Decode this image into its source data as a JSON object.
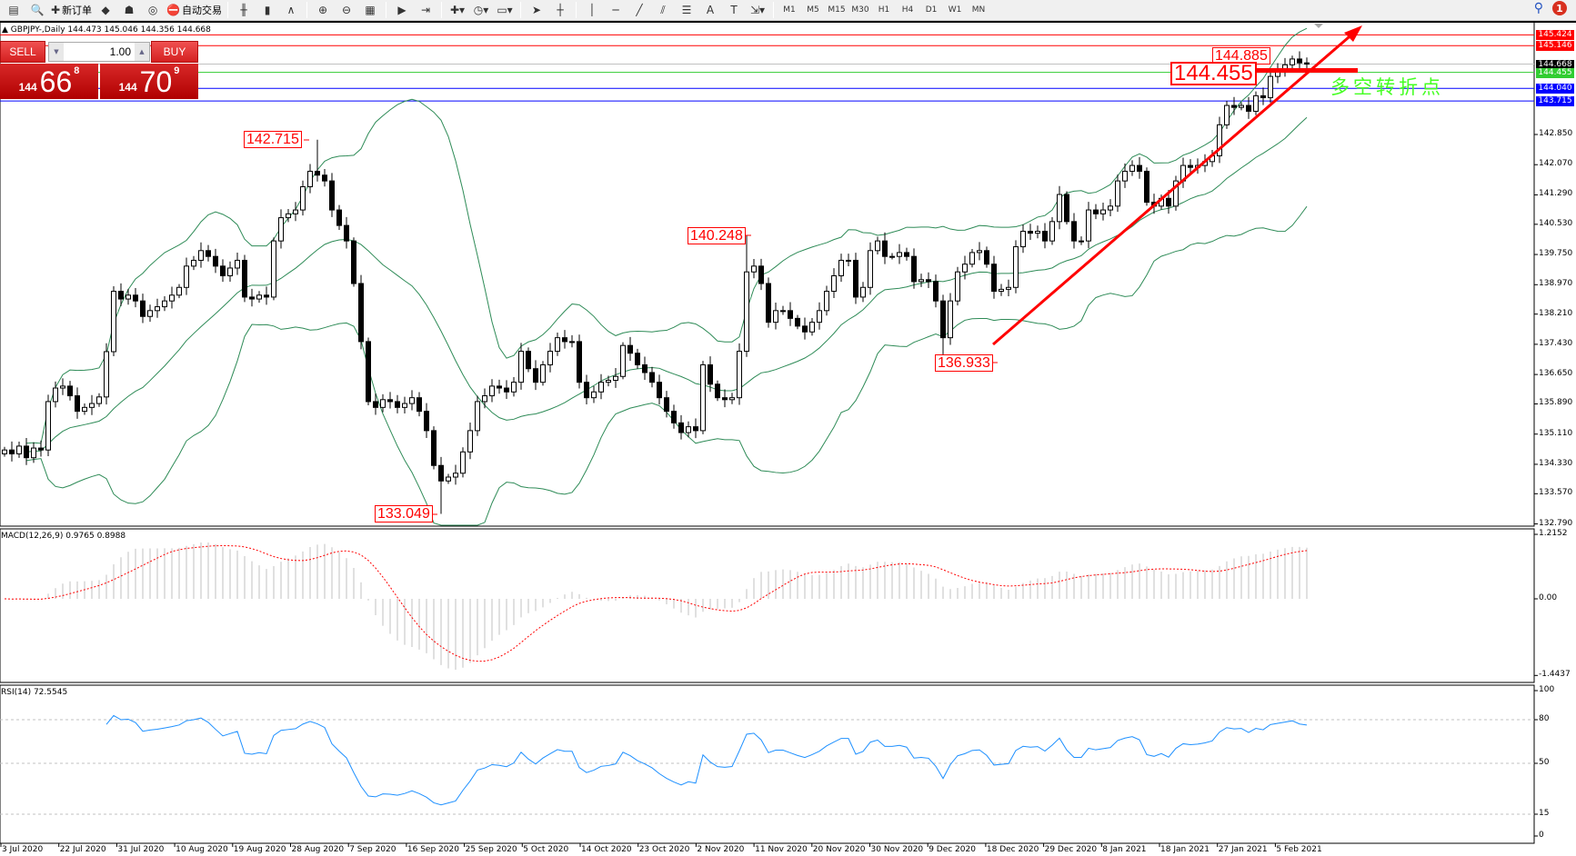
{
  "toolbar": {
    "items": [
      {
        "icon": "window-icon",
        "glyph": "▤"
      },
      {
        "icon": "print-preview-icon",
        "glyph": "🔍"
      },
      {
        "icon": "new-order-icon",
        "glyph": "✚",
        "label": "新订单"
      },
      {
        "icon": "market-watch-icon",
        "glyph": "◆"
      },
      {
        "icon": "navigator-icon",
        "glyph": "☗"
      },
      {
        "icon": "signals-icon",
        "glyph": "◎"
      },
      {
        "icon": "autotrading-icon",
        "glyph": "⛔",
        "label": "自动交易"
      },
      {
        "sep": true
      },
      {
        "icon": "bar-chart-icon",
        "glyph": "╫"
      },
      {
        "icon": "candlestick-icon",
        "glyph": "▮"
      },
      {
        "icon": "line-chart-icon",
        "glyph": "∧"
      },
      {
        "sep": true
      },
      {
        "icon": "zoom-in-icon",
        "glyph": "⊕"
      },
      {
        "icon": "zoom-out-icon",
        "glyph": "⊖"
      },
      {
        "icon": "tile-windows-icon",
        "glyph": "▦"
      },
      {
        "sep": true
      },
      {
        "icon": "auto-scroll-icon",
        "glyph": "▶"
      },
      {
        "icon": "chart-shift-icon",
        "glyph": "⇥"
      },
      {
        "sep": true
      },
      {
        "icon": "indicators-icon",
        "glyph": "✚▾"
      },
      {
        "icon": "periods-icon",
        "glyph": "◷▾"
      },
      {
        "icon": "templates-icon",
        "glyph": "▭▾"
      },
      {
        "sep": true
      },
      {
        "icon": "cursor-icon",
        "glyph": "➤"
      },
      {
        "icon": "crosshair-icon",
        "glyph": "┼"
      },
      {
        "sep": true
      },
      {
        "icon": "vertical-line-icon",
        "glyph": "│"
      },
      {
        "icon": "horizontal-line-icon",
        "glyph": "─"
      },
      {
        "icon": "trendline-icon",
        "glyph": "╱"
      },
      {
        "icon": "channel-icon",
        "glyph": "⫽"
      },
      {
        "icon": "fibonacci-icon",
        "glyph": "☰"
      },
      {
        "icon": "text-icon",
        "glyph": "A"
      },
      {
        "icon": "text-label-icon",
        "glyph": "T"
      },
      {
        "icon": "arrows-icon",
        "glyph": "⇲▾"
      },
      {
        "sep": true
      }
    ],
    "timeframes": [
      "M1",
      "M5",
      "M15",
      "M30",
      "H1",
      "H4",
      "D1",
      "W1",
      "MN"
    ],
    "notifications": "1"
  },
  "chart": {
    "title": "GBPJPY-,Daily  144.473 145.046 144.356 144.668",
    "one_click": {
      "sell_label": "SELL",
      "buy_label": "BUY",
      "lot": "1.00",
      "sell_price": {
        "big": "144",
        "main": "66",
        "pip": "8"
      },
      "buy_price": {
        "big": "144",
        "main": "70",
        "pip": "9"
      }
    },
    "annotations": {
      "a1": "142.715",
      "a2": "140.248",
      "a3": "136.933",
      "a4": "133.049",
      "a5": "144.885",
      "a6": "144.455",
      "note": "多空转折点"
    },
    "macd_label": "MACD(12,26,9) 0.9765 0.8988",
    "rsi_label": "RSI(14) 72.5545"
  },
  "chart_data": {
    "type": "candlestick",
    "symbol": "GBPJPY-",
    "timeframe": "Daily",
    "ylim": [
      132.79,
      145.6
    ],
    "price_ticks": [
      "142.850",
      "142.070",
      "141.290",
      "140.530",
      "139.750",
      "138.970",
      "138.210",
      "137.430",
      "136.650",
      "135.890",
      "135.110",
      "134.330",
      "133.570",
      "132.790"
    ],
    "hlines": [
      {
        "price": "145.424",
        "color": "#ff0000"
      },
      {
        "price": "145.146",
        "color": "#ff0000"
      },
      {
        "price": "144.668",
        "color": "#000000",
        "line": "#c0c0c0"
      },
      {
        "price": "144.455",
        "color": "#32cd32"
      },
      {
        "price": "144.040",
        "color": "#0000ff"
      },
      {
        "price": "143.715",
        "color": "#0000ff"
      }
    ],
    "x_labels": [
      "3 Jul 2020",
      "22 Jul 2020",
      "31 Jul 2020",
      "10 Aug 2020",
      "19 Aug 2020",
      "28 Aug 2020",
      "7 Sep 2020",
      "16 Sep 2020",
      "25 Sep 2020",
      "5 Oct 2020",
      "14 Oct 2020",
      "23 Oct 2020",
      "2 Nov 2020",
      "11 Nov 2020",
      "20 Nov 2020",
      "30 Nov 2020",
      "9 Dec 2020",
      "18 Dec 2020",
      "29 Dec 2020",
      "8 Jan 2021",
      "18 Jan 2021",
      "27 Jan 2021",
      "5 Feb 2021"
    ],
    "closes": [
      134.7,
      134.6,
      134.8,
      134.5,
      134.75,
      134.7,
      135.95,
      136.3,
      136.35,
      136.1,
      135.7,
      135.8,
      135.9,
      136.07,
      137.24,
      138.8,
      138.6,
      138.7,
      138.55,
      138.15,
      138.3,
      138.4,
      138.55,
      138.7,
      138.9,
      139.45,
      139.6,
      139.85,
      139.7,
      139.45,
      139.2,
      139.4,
      139.6,
      138.65,
      138.6,
      138.7,
      138.65,
      140.1,
      140.7,
      140.8,
      140.9,
      141.5,
      141.9,
      141.8,
      141.65,
      140.9,
      140.5,
      140.1,
      139.0,
      137.5,
      135.95,
      135.8,
      136.0,
      135.95,
      135.8,
      135.9,
      136.05,
      135.7,
      135.2,
      134.3,
      133.9,
      134.0,
      134.1,
      134.65,
      135.2,
      135.95,
      136.1,
      136.35,
      136.3,
      136.2,
      136.45,
      137.25,
      136.8,
      136.45,
      136.9,
      137.25,
      137.6,
      137.5,
      137.5,
      136.45,
      136.05,
      136.2,
      136.45,
      136.5,
      136.6,
      137.4,
      137.2,
      136.9,
      136.7,
      136.45,
      136.05,
      135.7,
      135.4,
      135.15,
      135.3,
      135.2,
      136.9,
      136.4,
      136.05,
      136.0,
      136.05,
      137.25,
      139.3,
      139.45,
      139.0,
      138.0,
      138.3,
      138.3,
      138.1,
      137.9,
      137.75,
      138.0,
      138.3,
      138.8,
      139.2,
      139.6,
      139.6,
      138.65,
      138.9,
      139.85,
      140.1,
      139.7,
      139.7,
      139.8,
      139.7,
      139.05,
      139.1,
      139.05,
      138.55,
      137.6,
      138.55,
      139.3,
      139.5,
      139.8,
      139.85,
      139.5,
      138.8,
      138.85,
      138.9,
      139.95,
      140.35,
      140.3,
      140.35,
      140.1,
      140.6,
      141.3,
      140.6,
      140.1,
      140.1,
      140.9,
      140.8,
      140.9,
      141.0,
      141.65,
      141.9,
      142.05,
      141.9,
      141.1,
      141.0,
      141.2,
      141.0,
      141.65,
      142.05,
      142.0,
      142.05,
      142.15,
      142.3,
      143.1,
      143.6,
      143.55,
      143.6,
      143.45,
      143.85,
      143.8,
      144.35,
      144.5,
      144.65,
      144.8,
      144.7,
      144.668
    ],
    "extremes": [
      {
        "price": 142.715,
        "type": "high"
      },
      {
        "price": 133.049,
        "type": "low"
      },
      {
        "price": 140.248,
        "type": "high"
      },
      {
        "price": 136.933,
        "type": "low"
      },
      {
        "price": 144.885,
        "type": "high"
      }
    ],
    "indicators": {
      "bollinger": {
        "period": 20,
        "deviation": 2,
        "color": "#2e8b57"
      },
      "macd": {
        "fast": 12,
        "slow": 26,
        "signal": 9,
        "main": 0.9765,
        "signal_value": 0.8988,
        "ylim": [
          -1.4437,
          1.2152
        ],
        "ticks": [
          "1.2152",
          "0.00",
          "-1.4437"
        ]
      },
      "rsi": {
        "period": 14,
        "value": 72.5545,
        "levels": [
          "80",
          "50",
          "15"
        ],
        "ticks": [
          "100",
          "80",
          "50",
          "15",
          "0"
        ],
        "color": "#1e90ff"
      }
    }
  }
}
